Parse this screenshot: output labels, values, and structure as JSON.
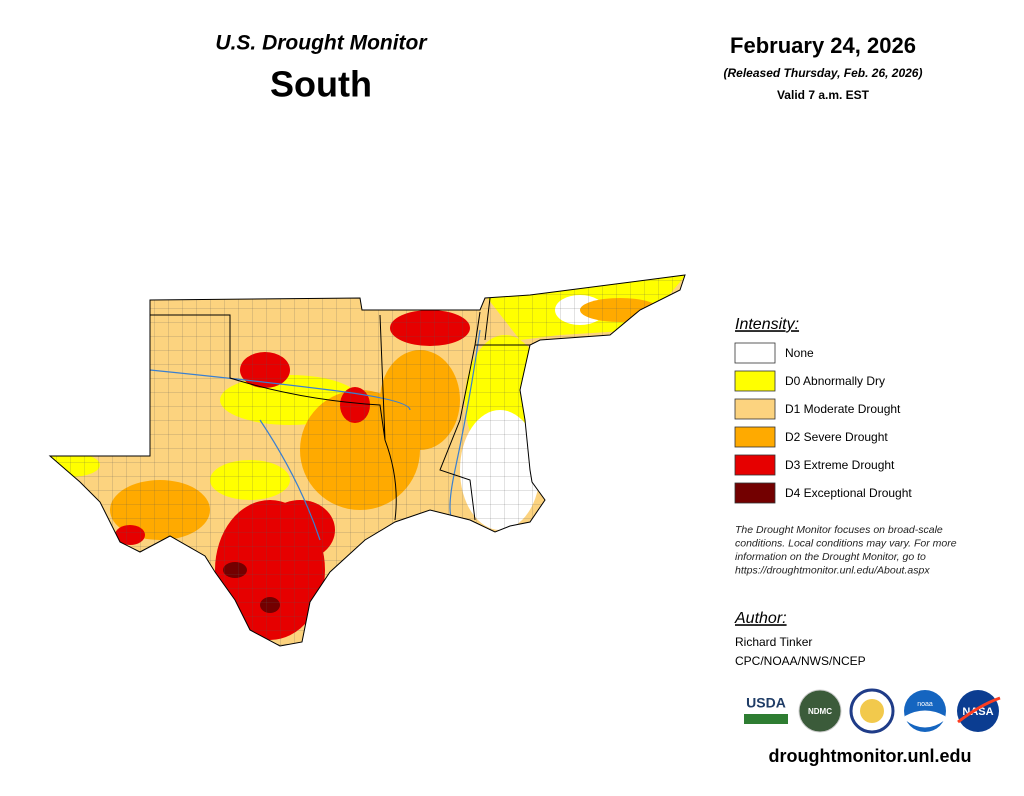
{
  "header": {
    "title": "U.S. Drought Monitor",
    "region": "South",
    "date": "February 24, 2026",
    "released": "(Released Thursday, Feb. 26, 2026)",
    "valid": "Valid 7 a.m. EST"
  },
  "legend": {
    "title": "Intensity:",
    "items": [
      {
        "label": "None",
        "color": "#ffffff"
      },
      {
        "label": "D0 Abnormally Dry",
        "color": "#ffff00"
      },
      {
        "label": "D1 Moderate Drought",
        "color": "#fcd37f"
      },
      {
        "label": "D2 Severe Drought",
        "color": "#ffaa00"
      },
      {
        "label": "D3 Extreme Drought",
        "color": "#e60000"
      },
      {
        "label": "D4 Exceptional Drought",
        "color": "#730000"
      }
    ]
  },
  "note": [
    "The Drought Monitor focuses on broad-scale",
    "conditions. Local conditions may vary. For more",
    "information on the Drought Monitor, go to",
    "https://droughtmonitor.unl.edu/About.aspx"
  ],
  "author": {
    "title": "Author:",
    "name": "Richard Tinker",
    "affiliation": "CPC/NOAA/NWS/NCEP"
  },
  "logos": [
    "USDA",
    "NDMC",
    "noaa",
    "NASA"
  ],
  "url": "droughtmonitor.unl.edu"
}
